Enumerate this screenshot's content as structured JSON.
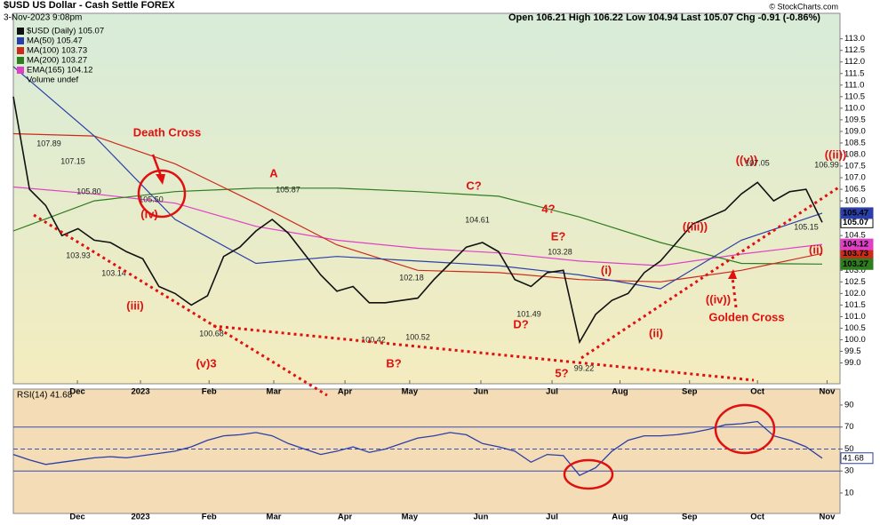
{
  "chart_data": {
    "type": "line",
    "title": "$USD US Dollar - Cash Settle FOREX",
    "subtitle": "3-Nov-2023 9:08pm",
    "quote": "Open 106.21 High 106.22 Low 104.94 Last 105.07 Chg -0.91 (-0.86%)",
    "source": "© StockCharts.com",
    "volume_legend": "Volume undef",
    "xlim": [
      0,
      51.1
    ],
    "xticks": [
      {
        "value": 3.96,
        "label": "Dec"
      },
      {
        "value": 7.86,
        "label": "2023"
      },
      {
        "value": 12.1,
        "label": "Feb"
      },
      {
        "value": 16.1,
        "label": "Mar"
      },
      {
        "value": 20.5,
        "label": "Apr"
      },
      {
        "value": 24.5,
        "label": "May"
      },
      {
        "value": 28.9,
        "label": "Jun"
      },
      {
        "value": 33.3,
        "label": "Jul"
      },
      {
        "value": 37.5,
        "label": "Aug"
      },
      {
        "value": 41.8,
        "label": "Sep"
      },
      {
        "value": 46.0,
        "label": "Oct"
      },
      {
        "value": 50.3,
        "label": "Nov"
      }
    ],
    "ylim": [
      98.1,
      114.1
    ],
    "yticks": [
      {
        "value": 99,
        "label": "99.0"
      },
      {
        "value": 99.5,
        "label": "99.5"
      },
      {
        "value": 100,
        "label": "100.0"
      },
      {
        "value": 100.5,
        "label": "100.5"
      },
      {
        "value": 101,
        "label": "101.0"
      },
      {
        "value": 101.5,
        "label": "101.5"
      },
      {
        "value": 102,
        "label": "102.0"
      },
      {
        "value": 102.5,
        "label": "102.5"
      },
      {
        "value": 103,
        "label": "103.0"
      },
      {
        "value": 103.5,
        "label": "103.5"
      },
      {
        "value": 104,
        "label": "104.0"
      },
      {
        "value": 104.5,
        "label": "104.5"
      },
      {
        "value": 105,
        "label": "105.0"
      },
      {
        "value": 105.5,
        "label": "105.5"
      },
      {
        "value": 106,
        "label": "106.0"
      },
      {
        "value": 106.5,
        "label": "106.5"
      },
      {
        "value": 107,
        "label": "107.0"
      },
      {
        "value": 107.5,
        "label": "107.5"
      },
      {
        "value": 108,
        "label": "108.0"
      },
      {
        "value": 108.5,
        "label": "108.5"
      },
      {
        "value": 109,
        "label": "109.0"
      },
      {
        "value": 109.5,
        "label": "109.5"
      },
      {
        "value": 110,
        "label": "110.0"
      },
      {
        "value": 110.5,
        "label": "110.5"
      },
      {
        "value": 111,
        "label": "111.0"
      },
      {
        "value": 111.5,
        "label": "111.5"
      },
      {
        "value": 112,
        "label": "112.0"
      },
      {
        "value": 112.5,
        "label": "112.5"
      },
      {
        "value": 113,
        "label": "113.0"
      }
    ],
    "series": [
      {
        "name": "$USD (Daily) 105.07",
        "color": "#111111",
        "tag": "105.07",
        "x": [
          0,
          1,
          2,
          3,
          4,
          5,
          6,
          7,
          8,
          9,
          10,
          11,
          12,
          13,
          14,
          15,
          16,
          17,
          18,
          19,
          20,
          21,
          22,
          23,
          24,
          25,
          26,
          27,
          28,
          29,
          30,
          31,
          32,
          33,
          34,
          35,
          36,
          37,
          38,
          39,
          40,
          41,
          42,
          43,
          44,
          45,
          46,
          47,
          48,
          49,
          50
        ],
        "values": [
          110.5,
          106.5,
          105.8,
          104.5,
          104.8,
          104.3,
          104.2,
          103.8,
          103.5,
          102.3,
          102.0,
          101.5,
          101.9,
          103.6,
          104.0,
          104.7,
          105.2,
          104.6,
          103.7,
          102.8,
          102.1,
          102.3,
          101.6,
          101.6,
          101.7,
          101.8,
          102.6,
          103.3,
          104.0,
          104.2,
          103.8,
          102.6,
          102.3,
          102.9,
          103.0,
          99.9,
          101.1,
          101.7,
          102.0,
          102.9,
          103.4,
          104.2,
          105.0,
          105.3,
          105.6,
          106.3,
          106.8,
          106.0,
          106.4,
          106.5,
          105.07
        ]
      },
      {
        "name": "MA(50) 105.47",
        "color": "#2b3fa8",
        "tag": "105.47",
        "x": [
          0,
          5,
          10,
          15,
          20,
          25,
          30,
          35,
          40,
          45,
          50
        ],
        "values": [
          111.8,
          108.8,
          105.2,
          103.3,
          103.6,
          103.4,
          103.2,
          102.8,
          102.2,
          104.3,
          105.47
        ]
      },
      {
        "name": "MA(100) 103.73",
        "color": "#cc2a1a",
        "tag": "103.73",
        "x": [
          0,
          5,
          10,
          15,
          20,
          25,
          30,
          35,
          40,
          45,
          50
        ],
        "values": [
          108.9,
          108.8,
          107.6,
          105.9,
          104.1,
          103.0,
          102.9,
          102.6,
          102.5,
          103.0,
          103.73
        ]
      },
      {
        "name": "MA(200) 103.27",
        "color": "#2e7d1e",
        "tag": "103.27",
        "x": [
          0,
          5,
          10,
          15,
          20,
          25,
          30,
          35,
          40,
          45,
          50
        ],
        "values": [
          104.7,
          106.0,
          106.4,
          106.55,
          106.55,
          106.4,
          106.2,
          105.3,
          104.2,
          103.3,
          103.27
        ]
      },
      {
        "name": "EMA(165) 104.12",
        "color": "#e040c8",
        "tag": "104.12",
        "x": [
          0,
          5,
          10,
          15,
          20,
          25,
          30,
          35,
          40,
          45,
          50
        ],
        "values": [
          106.6,
          106.3,
          105.9,
          104.9,
          104.3,
          103.95,
          103.75,
          103.4,
          103.2,
          103.7,
          104.12
        ]
      }
    ],
    "annotations": [
      "Death Cross",
      "A",
      "C?",
      "4?",
      "E?",
      "(iv)",
      "(iii)",
      "(v)3",
      "B?",
      "D?",
      "5?",
      "(i)",
      "(ii)",
      "((iii))",
      "((iv))",
      "Golden Cross",
      "((v))",
      "((ii))",
      "(ii)"
    ],
    "price_labels": [
      "107.89",
      "107.15",
      "105.80",
      "103.93",
      "103.14",
      "105.50",
      "100.68",
      "105.87",
      "100.42",
      "100.52",
      "102.18",
      "104.61",
      "101.49",
      "103.28",
      "99.22",
      "107.05",
      "106.99",
      "105.15"
    ],
    "rsi": {
      "name": "RSI(14) 41.68",
      "color": "#2b3fa8",
      "tag": "41.68",
      "ylim": [
        -18.3,
        104.5
      ],
      "yticks": [
        10,
        30,
        50,
        70,
        90
      ],
      "levels": [
        70,
        50,
        30
      ],
      "x": [
        0,
        1,
        2,
        3,
        4,
        5,
        6,
        7,
        8,
        9,
        10,
        11,
        12,
        13,
        14,
        15,
        16,
        17,
        18,
        19,
        20,
        21,
        22,
        23,
        24,
        25,
        26,
        27,
        28,
        29,
        30,
        31,
        32,
        33,
        34,
        35,
        36,
        37,
        38,
        39,
        40,
        41,
        42,
        43,
        44,
        45,
        46,
        47,
        48,
        49,
        50
      ],
      "values": [
        45,
        40,
        36,
        38,
        40,
        42,
        43,
        42,
        44,
        46,
        48,
        52,
        58,
        62,
        63,
        65,
        62,
        55,
        50,
        45,
        48,
        52,
        47,
        50,
        55,
        60,
        62,
        65,
        63,
        55,
        52,
        48,
        38,
        45,
        44,
        26,
        33,
        48,
        58,
        62,
        62,
        63,
        65,
        68,
        72,
        73,
        75,
        62,
        58,
        52,
        41.68
      ]
    }
  }
}
